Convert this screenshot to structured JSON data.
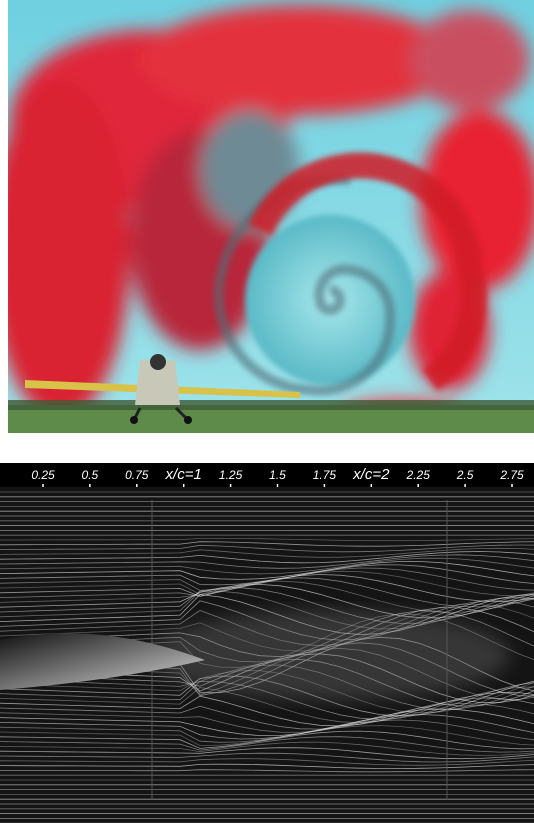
{
  "flow_image": {
    "scale": {
      "ticks": [
        0.25,
        0.5,
        0.75,
        {
          "value": 1,
          "label": "x/c=1"
        },
        1.25,
        1.5,
        1.75,
        {
          "value": 2,
          "label": "x/c=2"
        },
        2.25,
        2.5,
        2.75
      ]
    }
  }
}
